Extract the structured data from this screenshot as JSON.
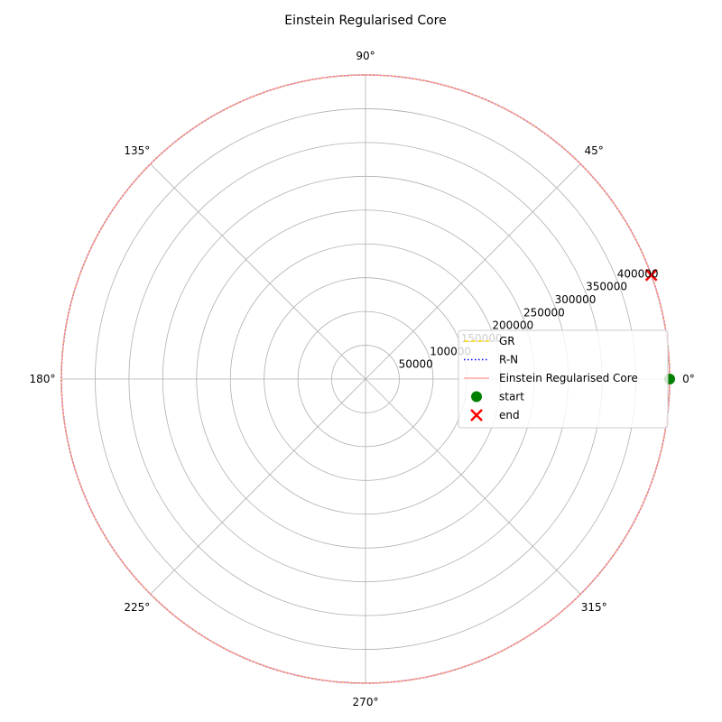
{
  "chart_data": {
    "type": "polar-line",
    "title": "Einstein Regularised Core",
    "theta_ticks": [
      "0°",
      "45°",
      "90°",
      "135°",
      "180°",
      "225°",
      "270°",
      "315°"
    ],
    "r_ticks": [
      "50000",
      "100000",
      "150000",
      "200000",
      "250000",
      "300000",
      "350000",
      "400000"
    ],
    "r_tick_values": [
      50000,
      100000,
      150000,
      200000,
      250000,
      300000,
      350000,
      400000
    ],
    "rlim": [
      0,
      450000
    ],
    "grid": true,
    "legend_placement": "center-right",
    "series": [
      {
        "name": "GR",
        "style": "dashed",
        "color": "#ffd700",
        "r": 450000,
        "theta_range_deg": [
          0,
          360
        ]
      },
      {
        "name": "R-N",
        "style": "dotted",
        "color": "#0000ff",
        "r": 450000,
        "theta_range_deg": [
          0,
          360
        ]
      },
      {
        "name": "Einstein Regularised Core",
        "style": "solid",
        "color": "#ff9999",
        "r": 450000,
        "theta_range_deg": [
          0,
          360
        ]
      }
    ],
    "markers": [
      {
        "name": "start",
        "shape": "circle",
        "color": "#008000",
        "theta_deg": 0,
        "r": 450000
      },
      {
        "name": "end",
        "shape": "x",
        "color": "#ff0000",
        "theta_deg": 20,
        "r": 450000
      }
    ]
  }
}
